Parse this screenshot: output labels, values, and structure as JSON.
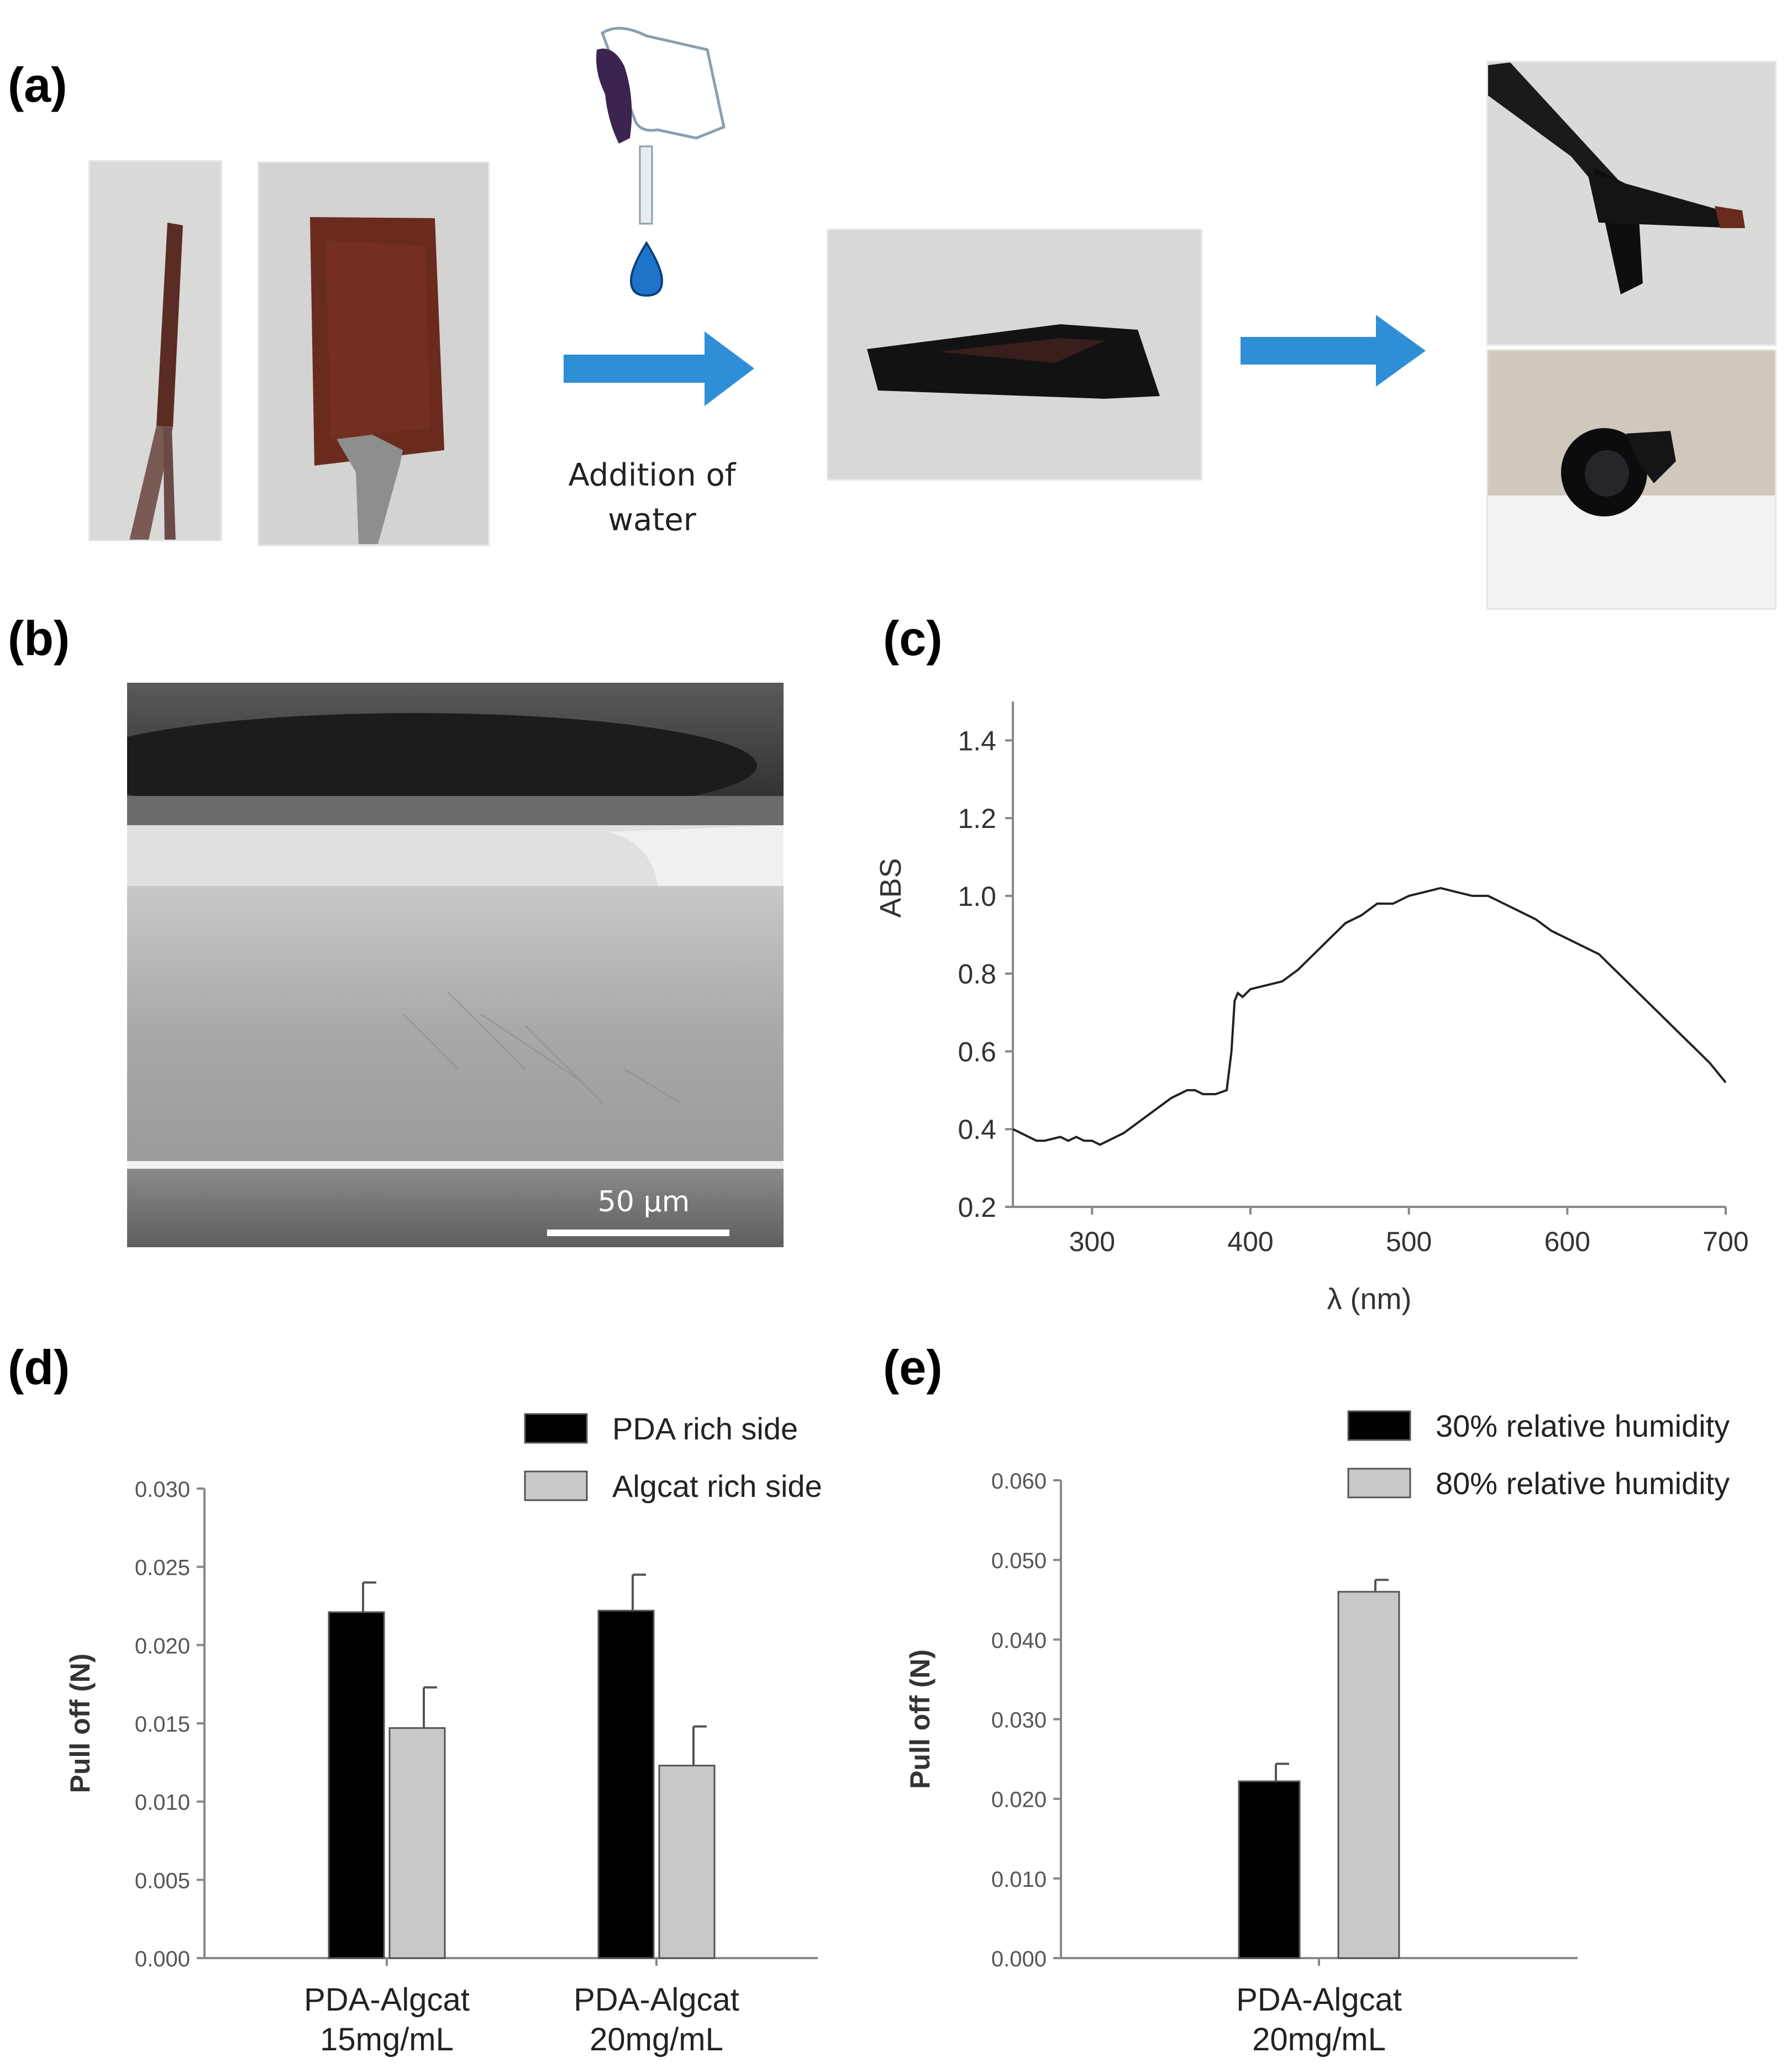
{
  "panels": {
    "a": {
      "label": "(a)",
      "caption": "Addition of water"
    },
    "b": {
      "label": "(b)",
      "scalebar": "50 µm"
    },
    "c": {
      "label": "(c)"
    },
    "d": {
      "label": "(d)"
    },
    "e": {
      "label": "(e)"
    }
  },
  "colors": {
    "arrow": "#2f8fd6",
    "drop": "#1d74c9",
    "black_bar": "#000000",
    "grey_bar": "#c8c8c8"
  },
  "chart_data": [
    {
      "id": "c",
      "type": "line",
      "xlabel": "λ (nm)",
      "ylabel": "ABS",
      "xlim": [
        250,
        700
      ],
      "ylim": [
        0.2,
        1.5
      ],
      "xticks": [
        300,
        400,
        500,
        600,
        700
      ],
      "yticks": [
        0.2,
        0.4,
        0.6,
        0.8,
        1.0,
        1.2,
        1.4
      ],
      "ytick_labels": [
        "0.2",
        "0.4",
        "0.6",
        "0.8",
        "1.0",
        "1.2",
        "1.4"
      ],
      "series": [
        {
          "x": [
            250,
            260,
            265,
            270,
            280,
            285,
            290,
            295,
            300,
            305,
            310,
            320,
            330,
            340,
            350,
            360,
            365,
            370,
            378,
            385,
            388,
            390,
            392,
            395,
            400,
            410,
            420,
            430,
            440,
            450,
            460,
            470,
            480,
            490,
            500,
            510,
            520,
            530,
            540,
            550,
            560,
            570,
            580,
            590,
            600,
            610,
            620,
            630,
            640,
            650,
            660,
            670,
            680,
            690,
            700
          ],
          "y": [
            0.4,
            0.38,
            0.37,
            0.37,
            0.38,
            0.37,
            0.38,
            0.37,
            0.37,
            0.36,
            0.37,
            0.39,
            0.42,
            0.45,
            0.48,
            0.5,
            0.5,
            0.49,
            0.49,
            0.5,
            0.6,
            0.73,
            0.75,
            0.74,
            0.76,
            0.77,
            0.78,
            0.81,
            0.85,
            0.89,
            0.93,
            0.95,
            0.98,
            0.98,
            1.0,
            1.01,
            1.02,
            1.01,
            1.0,
            1.0,
            0.98,
            0.96,
            0.94,
            0.91,
            0.89,
            0.87,
            0.85,
            0.81,
            0.77,
            0.73,
            0.69,
            0.65,
            0.61,
            0.57,
            0.52
          ]
        }
      ]
    },
    {
      "id": "d",
      "type": "bar",
      "ylabel": "Pull off (N)",
      "ylim": [
        0,
        0.03
      ],
      "yticks": [
        "0.000",
        "0.005",
        "0.010",
        "0.015",
        "0.020",
        "0.025",
        "0.030"
      ],
      "categories": [
        [
          "PDA-Algcat",
          "15mg/mL"
        ],
        [
          "PDA-Algcat",
          "20mg/mL"
        ]
      ],
      "series": [
        {
          "name": "PDA rich side",
          "values": [
            0.0221,
            0.0222
          ],
          "errors": [
            0.0019,
            0.0023
          ]
        },
        {
          "name": "Algcat rich side",
          "values": [
            0.0147,
            0.0123
          ],
          "errors": [
            0.0026,
            0.0025
          ]
        }
      ],
      "legend": "top-right"
    },
    {
      "id": "e",
      "type": "bar",
      "ylabel": "Pull off (N)",
      "ylim": [
        0,
        0.06
      ],
      "yticks": [
        "0.000",
        "0.010",
        "0.020",
        "0.030",
        "0.040",
        "0.050",
        "0.060"
      ],
      "categories": [
        [
          "PDA-Algcat",
          "20mg/mL"
        ]
      ],
      "series": [
        {
          "name": "30% relative humidity",
          "values": [
            0.0222
          ],
          "errors": [
            0.0022
          ]
        },
        {
          "name": "80% relative humidity",
          "values": [
            0.046
          ],
          "errors": [
            0.0015
          ]
        }
      ],
      "legend": "top-right"
    }
  ]
}
